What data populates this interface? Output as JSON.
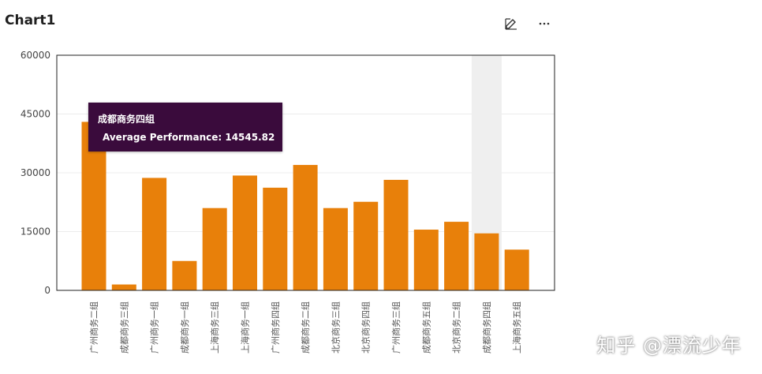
{
  "header": {
    "title": "Chart1",
    "edit_icon": "edit-icon",
    "more_icon": "overflow-menu-icon"
  },
  "tooltip": {
    "title": "成都商务四组",
    "label": "Average Performance",
    "value": "14545.82",
    "text": "Average Performance: 14545.82"
  },
  "watermark": "知乎 @漂流少年",
  "colors": {
    "bar": "#e8800a",
    "tooltip_bg": "#3a0b3c",
    "hover_band": "#efefef"
  },
  "chart_data": {
    "type": "bar",
    "categories": [
      "广州商务二组",
      "成都商务三组",
      "广州商务一组",
      "成都商务一组",
      "上海商务三组",
      "上海商务一组",
      "广州商务四组",
      "成都商务二组",
      "北京商务三组",
      "北京商务四组",
      "广州商务三组",
      "成都商务五组",
      "北京商务二组",
      "成都商务四组",
      "上海商务五组"
    ],
    "values": [
      43000,
      1500,
      28700,
      7500,
      21000,
      29300,
      26200,
      32000,
      21000,
      22600,
      28200,
      15500,
      17500,
      14545.82,
      10400
    ],
    "ylim": [
      0,
      60000
    ],
    "yticks": [
      0,
      15000,
      30000,
      45000,
      60000
    ],
    "highlighted_index": 13,
    "xlabel": "",
    "ylabel": ""
  }
}
